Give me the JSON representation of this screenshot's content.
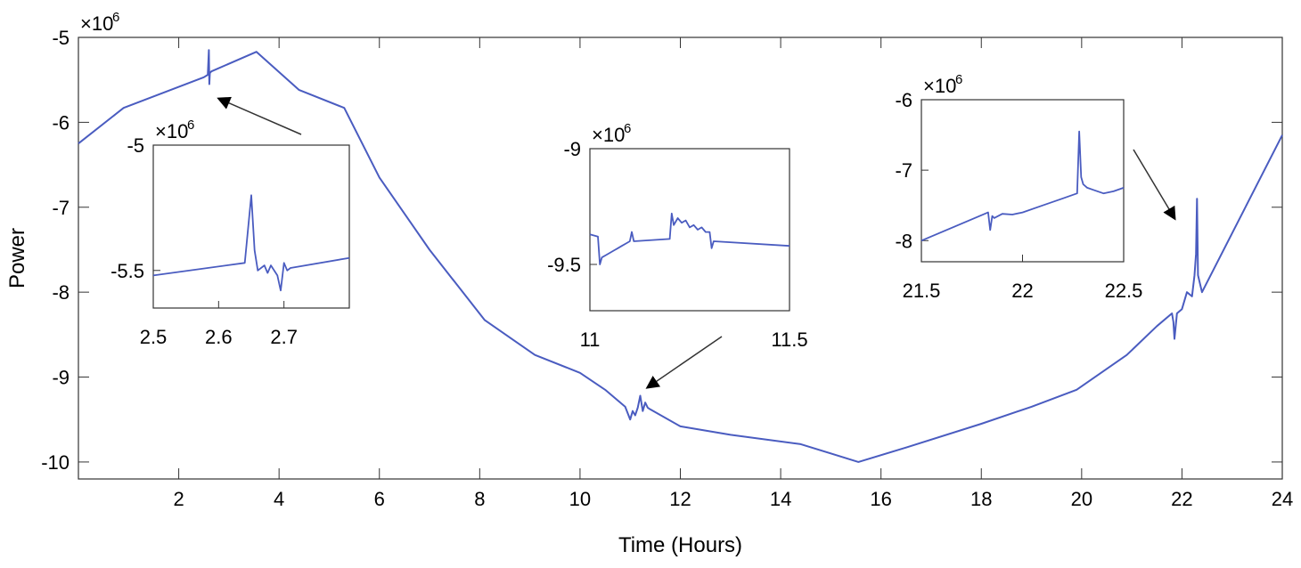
{
  "chart_data": {
    "type": "line",
    "xlabel": "Time (Hours)",
    "ylabel": "Power",
    "xlim": [
      0,
      24
    ],
    "ylim": [
      -10.2,
      -5
    ],
    "xticks": [
      2,
      4,
      6,
      8,
      10,
      12,
      14,
      16,
      18,
      20,
      22,
      24
    ],
    "yticks": [
      -10,
      -9,
      -8,
      -7,
      -6,
      -5
    ],
    "y_multiplier": "×10",
    "y_multiplier_exp": "6",
    "series": [
      {
        "name": "Power",
        "color": "#4a5cc0",
        "x": [
          0,
          0.9,
          2.5,
          2.58,
          2.6,
          2.61,
          2.62,
          2.65,
          3.55,
          4.4,
          5.3,
          6.0,
          7.0,
          8.1,
          9.1,
          10.0,
          10.5,
          10.9,
          11.0,
          11.05,
          11.1,
          11.15,
          11.2,
          11.25,
          11.3,
          11.35,
          11.4,
          12.0,
          13.0,
          14.4,
          15.55,
          16.5,
          18.0,
          19.0,
          19.9,
          20.9,
          21.5,
          21.8,
          21.83,
          21.85,
          21.9,
          22.0,
          22.1,
          22.2,
          22.25,
          22.28,
          22.3,
          22.32,
          22.4,
          24.0
        ],
        "y": [
          -6.25,
          -5.83,
          -5.47,
          -5.44,
          -5.15,
          -5.55,
          -5.42,
          -5.4,
          -5.17,
          -5.62,
          -5.83,
          -6.65,
          -7.5,
          -8.33,
          -8.74,
          -8.95,
          -9.15,
          -9.35,
          -9.5,
          -9.4,
          -9.45,
          -9.36,
          -9.22,
          -9.4,
          -9.3,
          -9.36,
          -9.38,
          -9.58,
          -9.68,
          -9.79,
          -10.0,
          -9.83,
          -9.55,
          -9.35,
          -9.15,
          -8.74,
          -8.4,
          -8.25,
          -8.35,
          -8.55,
          -8.25,
          -8.2,
          -8.0,
          -8.05,
          -7.8,
          -7.55,
          -6.9,
          -7.8,
          -8.0,
          -6.15
        ]
      }
    ],
    "insets": [
      {
        "xlim": [
          2.5,
          2.8
        ],
        "ylim": [
          -5.65,
          -5.0
        ],
        "xticks": [
          2.5,
          2.6,
          2.7
        ],
        "yticks": [
          -5.5,
          -5.0
        ],
        "y_multiplier": "×10",
        "y_multiplier_exp": "6",
        "x": [
          2.5,
          2.64,
          2.65,
          2.655,
          2.66,
          2.67,
          2.675,
          2.68,
          2.69,
          2.695,
          2.7,
          2.705,
          2.71,
          2.8
        ],
        "y": [
          -5.52,
          -5.47,
          -5.2,
          -5.42,
          -5.5,
          -5.48,
          -5.51,
          -5.48,
          -5.52,
          -5.58,
          -5.47,
          -5.5,
          -5.49,
          -5.45
        ]
      },
      {
        "xlim": [
          11.0,
          11.5
        ],
        "ylim": [
          -9.7,
          -9.0
        ],
        "xticks": [
          11.0,
          11.5
        ],
        "yticks": [
          -9.5,
          -9.0
        ],
        "y_multiplier": "×10",
        "y_multiplier_exp": "6",
        "x": [
          11.0,
          11.02,
          11.025,
          11.03,
          11.04,
          11.05,
          11.06,
          11.07,
          11.08,
          11.09,
          11.1,
          11.105,
          11.11,
          11.2,
          11.205,
          11.21,
          11.22,
          11.23,
          11.24,
          11.25,
          11.26,
          11.27,
          11.28,
          11.29,
          11.3,
          11.305,
          11.31,
          11.5
        ],
        "y": [
          -9.37,
          -9.38,
          -9.5,
          -9.47,
          -9.46,
          -9.45,
          -9.44,
          -9.43,
          -9.42,
          -9.41,
          -9.4,
          -9.36,
          -9.4,
          -9.39,
          -9.28,
          -9.33,
          -9.3,
          -9.32,
          -9.31,
          -9.34,
          -9.33,
          -9.35,
          -9.34,
          -9.36,
          -9.36,
          -9.43,
          -9.4,
          -9.42
        ]
      },
      {
        "xlim": [
          21.5,
          22.5
        ],
        "ylim": [
          -8.3,
          -6.0
        ],
        "xticks": [
          21.5,
          22.0,
          22.5
        ],
        "yticks": [
          -8.0,
          -7.0,
          -6.0
        ],
        "y_multiplier": "×10",
        "y_multiplier_exp": "6",
        "x": [
          21.5,
          21.83,
          21.84,
          21.85,
          21.86,
          21.9,
          21.95,
          22.0,
          22.1,
          22.2,
          22.27,
          22.28,
          22.29,
          22.3,
          22.32,
          22.35,
          22.4,
          22.45,
          22.5
        ],
        "y": [
          -8.0,
          -7.6,
          -7.85,
          -7.65,
          -7.68,
          -7.62,
          -7.63,
          -7.6,
          -7.5,
          -7.4,
          -7.33,
          -6.45,
          -7.1,
          -7.2,
          -7.25,
          -7.28,
          -7.33,
          -7.3,
          -7.25
        ]
      }
    ]
  }
}
